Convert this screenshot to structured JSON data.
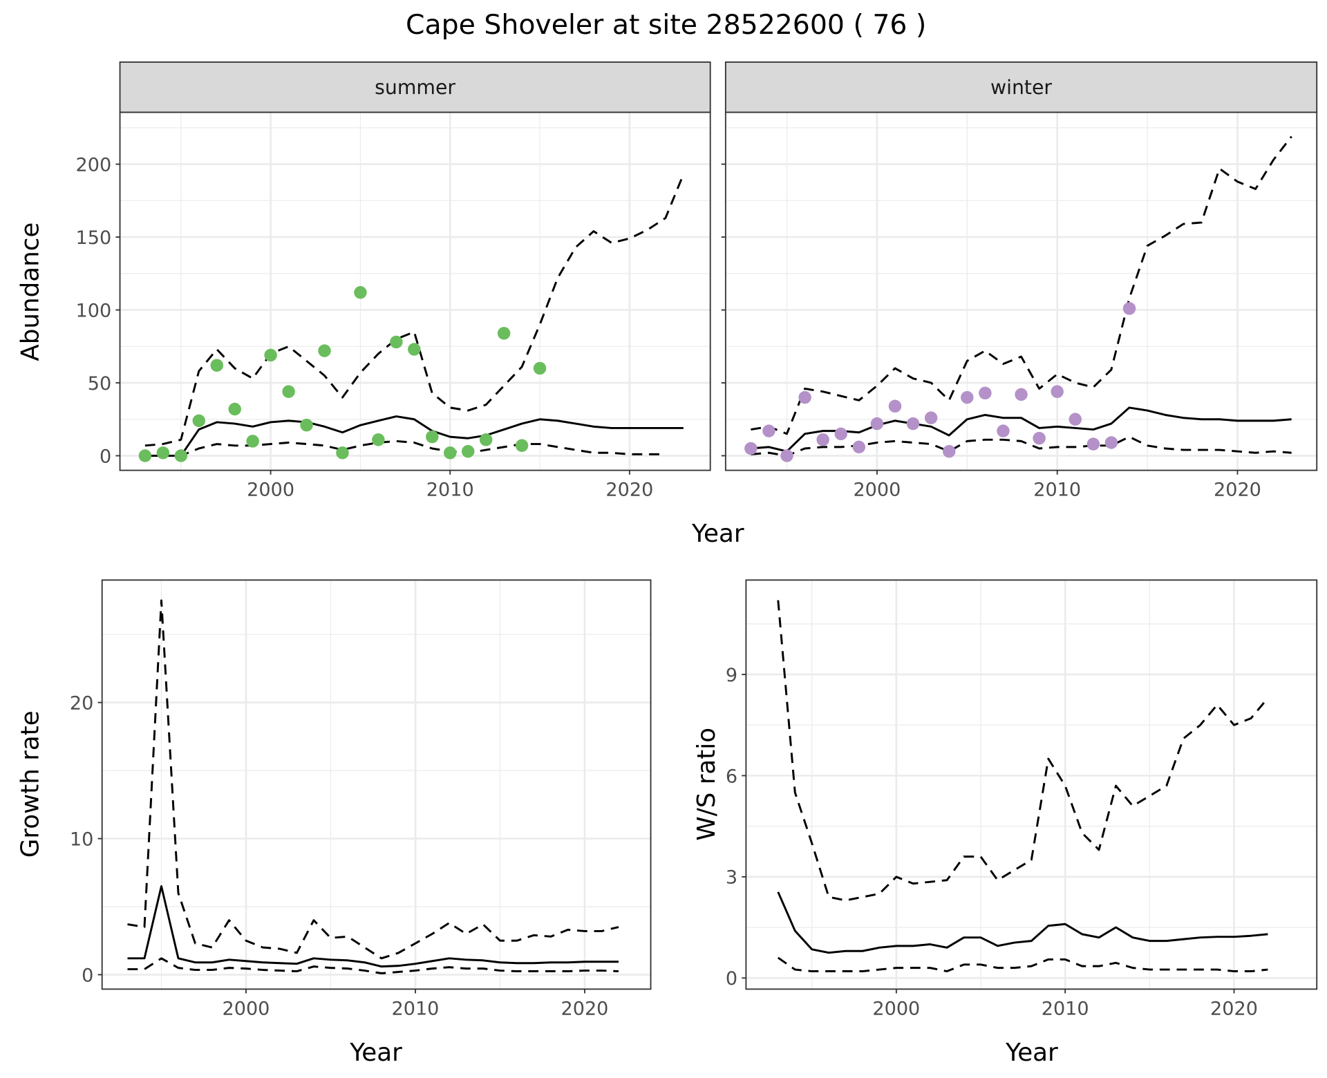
{
  "title": "Cape Shoveler at site 28522600 ( 76 )",
  "colors": {
    "summer": "#6abd5c",
    "winter": "#b491c8",
    "line": "#000000",
    "grid": "#ebebeb",
    "strip": "#d9d9d9"
  },
  "chart_data": [
    {
      "type": "line+scatter",
      "panel": "summer",
      "strip_label": "summer",
      "xlabel": "Year",
      "ylabel": "Abundance",
      "xlim": [
        1991.6,
        2024.5
      ],
      "ylim": [
        -10,
        235.6
      ],
      "xticks": [
        2000,
        2010,
        2020
      ],
      "xtick_labels": [
        "2000",
        "2010",
        "2020"
      ],
      "yticks": [
        0,
        50,
        100,
        150,
        200
      ],
      "ytick_labels": [
        "0",
        "50",
        "100",
        "150",
        "200"
      ],
      "points": {
        "x": [
          1993,
          1994,
          1995,
          1996,
          1997,
          1998,
          1999,
          2000,
          2001,
          2002,
          2003,
          2004,
          2005,
          2006,
          2007,
          2008,
          2009,
          2010,
          2011,
          2012,
          2013,
          2014,
          2015
        ],
        "y": [
          0,
          2,
          0,
          24,
          62,
          32,
          10,
          69,
          44,
          21,
          72,
          2,
          112,
          11,
          78,
          73,
          13,
          2,
          3,
          11,
          84,
          7,
          60
        ]
      },
      "x": [
        1993,
        1994,
        1995,
        1996,
        1997,
        1998,
        1999,
        2000,
        2001,
        2002,
        2003,
        2004,
        2005,
        2006,
        2007,
        2008,
        2009,
        2010,
        2011,
        2012,
        2013,
        2014,
        2015,
        2016,
        2017,
        2018,
        2019,
        2020,
        2021,
        2022,
        2023
      ],
      "series": [
        {
          "name": "estimate",
          "style": "solid",
          "values": [
            0,
            0,
            0,
            18,
            23,
            22,
            20,
            23,
            24,
            23,
            20,
            16,
            21,
            24,
            27,
            25,
            17,
            13,
            12,
            14,
            18,
            22,
            25,
            24,
            22,
            20,
            19,
            19,
            19,
            19,
            19
          ]
        },
        {
          "name": "upper",
          "style": "dashed",
          "values": [
            7,
            8,
            11,
            58,
            73,
            60,
            53,
            70,
            75,
            65,
            55,
            40,
            57,
            70,
            80,
            85,
            43,
            33,
            31,
            35,
            48,
            61,
            90,
            122,
            143,
            154,
            146,
            149,
            155,
            163,
            193
          ]
        },
        {
          "name": "lower",
          "style": "dashed",
          "values": [
            0,
            0,
            0,
            5,
            8,
            7,
            7,
            8,
            9,
            8,
            7,
            4,
            7,
            9,
            10,
            9,
            5,
            3,
            2,
            4,
            6,
            8,
            8,
            6,
            4,
            2,
            2,
            1,
            1,
            1,
            null
          ]
        }
      ]
    },
    {
      "type": "line+scatter",
      "panel": "winter",
      "strip_label": "winter",
      "xlabel": "Year",
      "ylabel": "Abundance",
      "xlim": [
        1991.6,
        2024.4
      ],
      "ylim": [
        -10,
        235.6
      ],
      "xticks": [
        2000,
        2010,
        2020
      ],
      "xtick_labels": [
        "2000",
        "2010",
        "2020"
      ],
      "yticks": [
        0,
        50,
        100,
        150,
        200
      ],
      "ytick_labels": [],
      "points": {
        "x": [
          1993,
          1994,
          1995,
          1996,
          1997,
          1998,
          1999,
          2000,
          2001,
          2002,
          2003,
          2004,
          2005,
          2006,
          2007,
          2008,
          2009,
          2010,
          2011,
          2012,
          2013,
          2014
        ],
        "y": [
          5,
          17,
          0,
          40,
          11,
          15,
          6,
          22,
          34,
          22,
          26,
          3,
          40,
          43,
          17,
          42,
          12,
          44,
          25,
          8,
          9,
          101
        ]
      },
      "x": [
        1993,
        1994,
        1995,
        1996,
        1997,
        1998,
        1999,
        2000,
        2001,
        2002,
        2003,
        2004,
        2005,
        2006,
        2007,
        2008,
        2009,
        2010,
        2011,
        2012,
        2013,
        2014,
        2015,
        2016,
        2017,
        2018,
        2019,
        2020,
        2021,
        2022,
        2023
      ],
      "series": [
        {
          "name": "estimate",
          "style": "solid",
          "values": [
            5,
            6,
            3,
            15,
            17,
            17,
            16,
            21,
            24,
            22,
            20,
            14,
            25,
            28,
            26,
            26,
            19,
            20,
            19,
            18,
            22,
            33,
            31,
            28,
            26,
            25,
            25,
            24,
            24,
            24,
            25
          ]
        },
        {
          "name": "upper",
          "style": "dashed",
          "values": [
            18,
            20,
            15,
            46,
            44,
            41,
            38,
            48,
            60,
            53,
            50,
            38,
            65,
            72,
            63,
            68,
            46,
            56,
            50,
            47,
            59,
            108,
            144,
            151,
            159,
            160,
            197,
            188,
            183,
            203,
            219
          ]
        },
        {
          "name": "lower",
          "style": "dashed",
          "values": [
            1,
            2,
            0,
            5,
            6,
            6,
            7,
            9,
            10,
            9,
            8,
            3,
            10,
            11,
            11,
            10,
            5,
            6,
            6,
            7,
            7,
            13,
            7,
            5,
            4,
            4,
            4,
            3,
            2,
            3,
            2
          ]
        }
      ]
    },
    {
      "type": "line",
      "panel": "growth",
      "xlabel": "Year",
      "ylabel": "Growth rate",
      "xlim": [
        1991.5,
        2023.9
      ],
      "ylim": [
        -1.06,
        29.0
      ],
      "xticks": [
        2000,
        2010,
        2020
      ],
      "xtick_labels": [
        "2000",
        "2010",
        "2020"
      ],
      "yticks": [
        0,
        10,
        20
      ],
      "ytick_labels": [
        "0",
        "10",
        "20"
      ],
      "x": [
        1993,
        1994,
        1995,
        1996,
        1997,
        1998,
        1999,
        2000,
        2001,
        2002,
        2003,
        2004,
        2005,
        2006,
        2007,
        2008,
        2009,
        2010,
        2011,
        2012,
        2013,
        2014,
        2015,
        2016,
        2017,
        2018,
        2019,
        2020,
        2021,
        2022
      ],
      "series": [
        {
          "name": "estimate",
          "style": "solid",
          "values": [
            1.2,
            1.2,
            6.5,
            1.2,
            0.9,
            0.9,
            1.1,
            1.0,
            0.9,
            0.85,
            0.8,
            1.2,
            1.1,
            1.05,
            0.9,
            0.6,
            0.65,
            0.8,
            1.0,
            1.2,
            1.1,
            1.05,
            0.9,
            0.85,
            0.85,
            0.9,
            0.9,
            0.95,
            0.95,
            0.95
          ]
        },
        {
          "name": "upper",
          "style": "dashed",
          "values": [
            3.7,
            3.5,
            27.5,
            6,
            2.3,
            2,
            4,
            2.5,
            2,
            1.9,
            1.6,
            4,
            2.7,
            2.8,
            2,
            1.2,
            1.6,
            2.3,
            3,
            3.8,
            3,
            3.7,
            2.5,
            2.5,
            2.9,
            2.8,
            3.3,
            3.2,
            3.2,
            3.5
          ]
        },
        {
          "name": "lower",
          "style": "dashed",
          "values": [
            0.4,
            0.4,
            1.2,
            0.5,
            0.35,
            0.35,
            0.5,
            0.45,
            0.35,
            0.3,
            0.25,
            0.6,
            0.5,
            0.45,
            0.3,
            0.1,
            0.2,
            0.3,
            0.45,
            0.55,
            0.45,
            0.45,
            0.3,
            0.25,
            0.25,
            0.25,
            0.25,
            0.3,
            0.3,
            0.25
          ]
        }
      ]
    },
    {
      "type": "line",
      "panel": "ratio",
      "xlabel": "Year",
      "ylabel": "W/S ratio",
      "xlim": [
        1991.1,
        2024.9
      ],
      "ylim": [
        -0.33,
        11.8
      ],
      "xticks": [
        2000,
        2010,
        2020
      ],
      "xtick_labels": [
        "2000",
        "2010",
        "2020"
      ],
      "yticks": [
        0,
        3,
        6,
        9
      ],
      "ytick_labels": [
        "0",
        "3",
        "6",
        "9"
      ],
      "x": [
        1993,
        1994,
        1995,
        1996,
        1997,
        1998,
        1999,
        2000,
        2001,
        2002,
        2003,
        2004,
        2005,
        2006,
        2007,
        2008,
        2009,
        2010,
        2011,
        2012,
        2013,
        2014,
        2015,
        2016,
        2017,
        2018,
        2019,
        2020,
        2021,
        2022
      ],
      "series": [
        {
          "name": "estimate",
          "style": "solid",
          "values": [
            2.55,
            1.4,
            0.85,
            0.75,
            0.8,
            0.8,
            0.9,
            0.95,
            0.95,
            1.0,
            0.9,
            1.2,
            1.2,
            0.95,
            1.05,
            1.1,
            1.55,
            1.6,
            1.3,
            1.2,
            1.5,
            1.2,
            1.1,
            1.1,
            1.15,
            1.2,
            1.22,
            1.22,
            1.25,
            1.3
          ]
        },
        {
          "name": "upper",
          "style": "dashed",
          "values": [
            11.2,
            5.5,
            4,
            2.4,
            2.3,
            2.4,
            2.5,
            3,
            2.8,
            2.85,
            2.9,
            3.6,
            3.6,
            2.9,
            3.2,
            3.5,
            6.5,
            5.7,
            4.3,
            3.8,
            5.7,
            5.1,
            5.4,
            5.7,
            7.1,
            7.5,
            8.1,
            7.5,
            7.7,
            8.3
          ]
        },
        {
          "name": "lower",
          "style": "dashed",
          "values": [
            0.6,
            0.25,
            0.2,
            0.2,
            0.2,
            0.2,
            0.25,
            0.3,
            0.3,
            0.3,
            0.2,
            0.4,
            0.4,
            0.3,
            0.3,
            0.35,
            0.55,
            0.55,
            0.35,
            0.35,
            0.45,
            0.3,
            0.25,
            0.25,
            0.25,
            0.25,
            0.25,
            0.2,
            0.2,
            0.25
          ]
        }
      ]
    }
  ]
}
